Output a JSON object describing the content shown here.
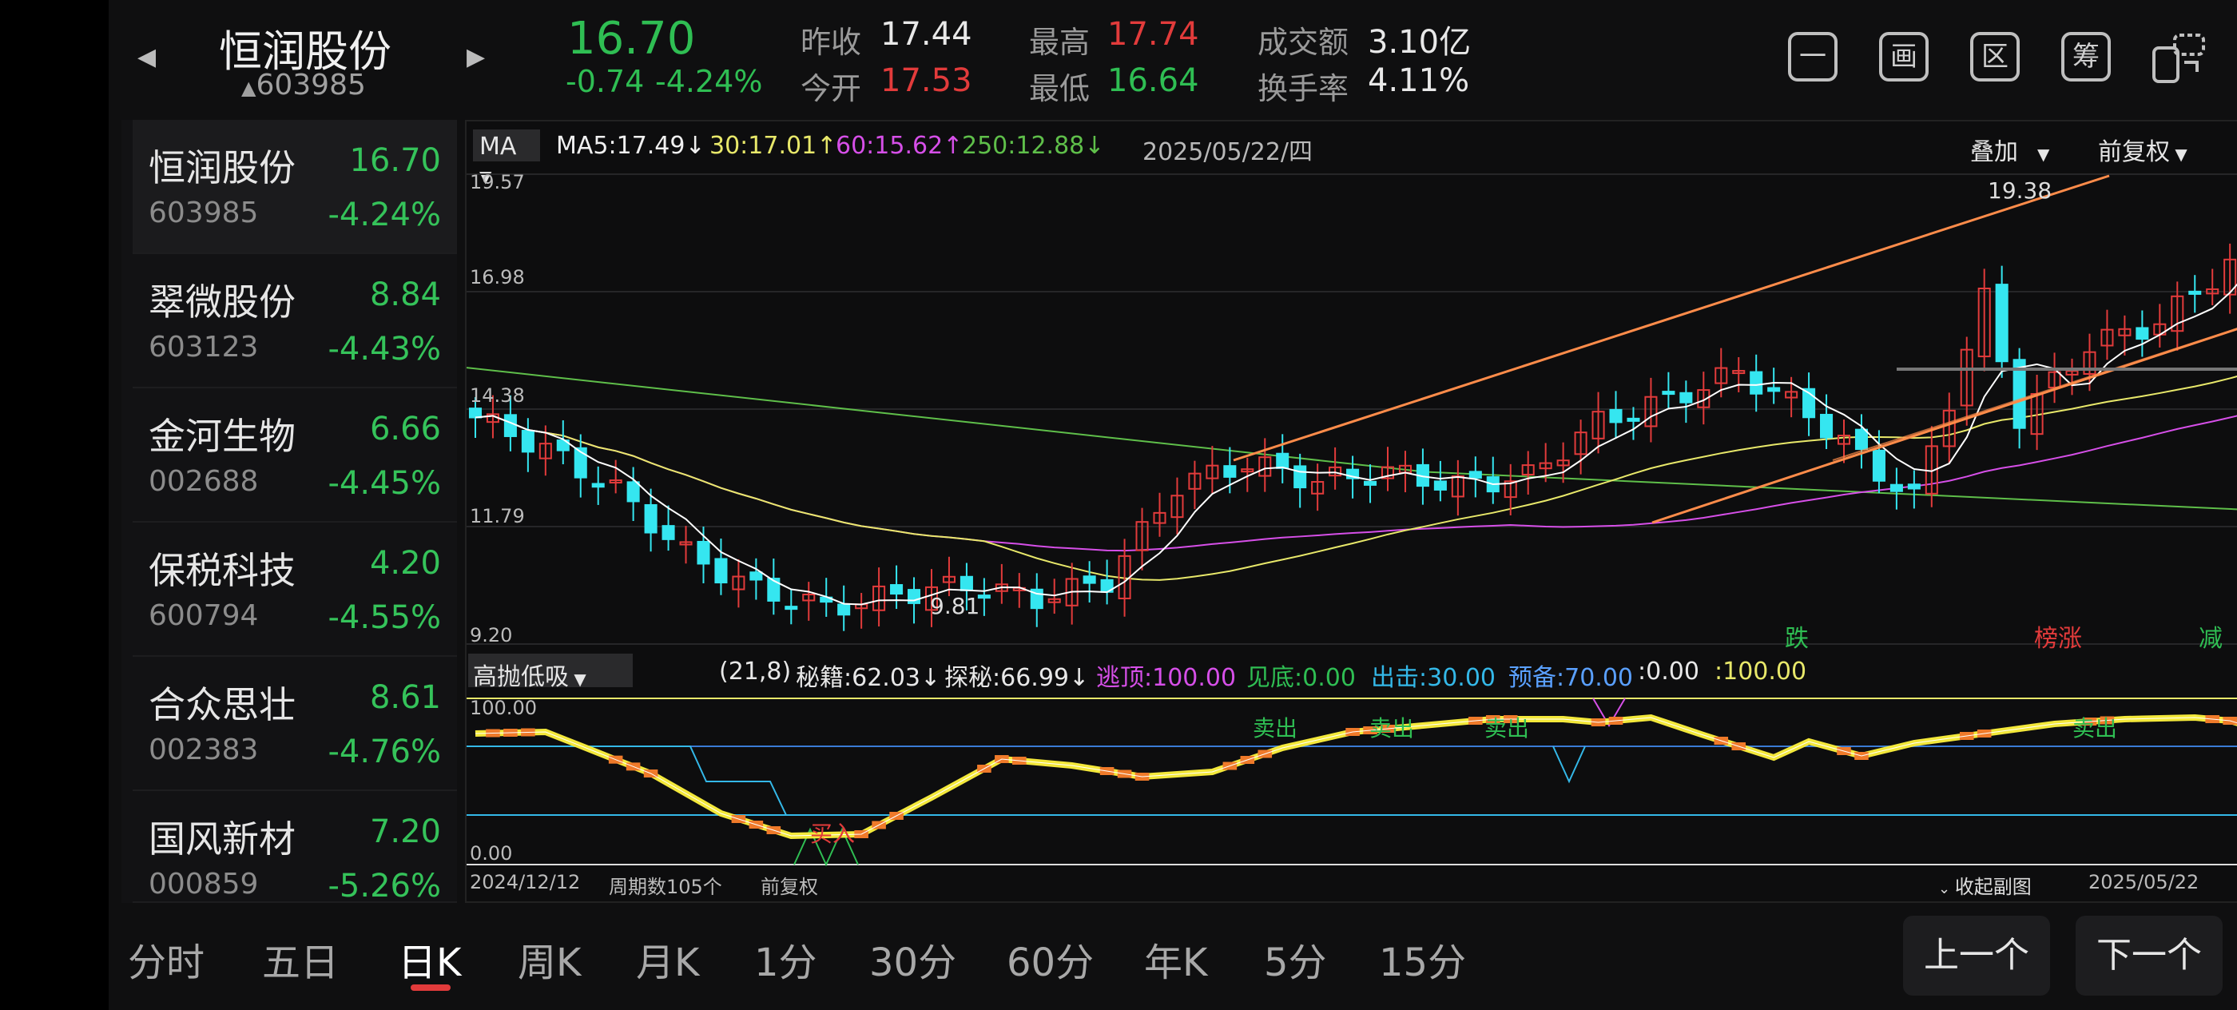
{
  "header": {
    "stock_name": "恒润股份",
    "stock_code": "603985",
    "price": "16.70",
    "change": "-0.74",
    "change_pct": "-4.24%",
    "stats": [
      {
        "label": "昨收",
        "value": "17.44"
      },
      {
        "label": "今开",
        "value": "17.53"
      },
      {
        "label": "最高",
        "value": "17.74"
      },
      {
        "label": "最低",
        "value": "16.64"
      },
      {
        "label": "成交额",
        "value": "3.10亿"
      },
      {
        "label": "换手率",
        "value": "4.11%"
      }
    ],
    "icons": [
      {
        "label": "一",
        "icon": "minus-icon"
      },
      {
        "label": "画",
        "icon": "draw-icon"
      },
      {
        "label": "区",
        "icon": "range-icon"
      },
      {
        "label": "筹",
        "icon": "chips-icon"
      },
      {
        "label": "",
        "icon": "landscape-icon"
      }
    ]
  },
  "watchlist": [
    {
      "name": "恒润股份",
      "code": "603985",
      "price": "16.70",
      "pct": "-4.24%"
    },
    {
      "name": "翠微股份",
      "code": "603123",
      "price": "8.84",
      "pct": "-4.43%"
    },
    {
      "name": "金河生物",
      "code": "002688",
      "price": "6.66",
      "pct": "-4.45%"
    },
    {
      "name": "保税科技",
      "code": "600794",
      "price": "4.20",
      "pct": "-4.55%"
    },
    {
      "name": "合众思壮",
      "code": "002383",
      "price": "8.61",
      "pct": "-4.76%"
    },
    {
      "name": "国风新材",
      "code": "000859",
      "price": "7.20",
      "pct": "-5.26%"
    }
  ],
  "chart": {
    "ma_selector": "MA",
    "ma5": "MA5:17.49↓",
    "ma30": "30:17.01↑",
    "ma60": "60:15.62↑",
    "ma250": "250:12.88↓",
    "date": "2025/05/22/四",
    "overlay": "叠加",
    "adjust": "前复权",
    "price_labels": [
      "19.57",
      "16.98",
      "14.38",
      "11.79",
      "9.20"
    ],
    "high_label": "19.38",
    "low_label": "9.81",
    "markers": [
      {
        "text": "跌",
        "color": "#2fbe53"
      },
      {
        "text": "榜涨",
        "color": "#e23b3b"
      },
      {
        "text": "减",
        "color": "#2fbe53"
      }
    ],
    "indicator": {
      "name": "高抛低吸",
      "params": "(21,8)",
      "mj": "秘籍:62.03↓",
      "tm": "探秘:66.99↓",
      "tao": "逃顶:100.00",
      "jd": "见底:0.00",
      "cj": "出击:30.00",
      "yb": "预备:70.00",
      "z": ":0.00",
      "h": ":100.00",
      "top_label": "100.00",
      "bottom_label": "0.00",
      "sell_labels": [
        "卖出",
        "卖出",
        "卖出",
        "卖出"
      ],
      "buy_label": "买入"
    },
    "footer": {
      "start": "2024/12/12",
      "count": "周期数105个",
      "adjust": "前复权",
      "collapse": "收起副图",
      "end": "2025/05/22"
    }
  },
  "tabs": [
    "分时",
    "五日",
    "日K",
    "周K",
    "月K",
    "1分",
    "30分",
    "60分",
    "年K",
    "5分",
    "15分"
  ],
  "buttons": {
    "prev": "上一个",
    "next": "下一个"
  },
  "colors": {
    "up": "#e23b3b",
    "down": "#35e6f0",
    "ma5": "#ffffff",
    "ma30": "#e8e86a",
    "ma60": "#d64fe8",
    "ma250": "#5fbf4a",
    "trend": "#ff8c4a"
  }
}
